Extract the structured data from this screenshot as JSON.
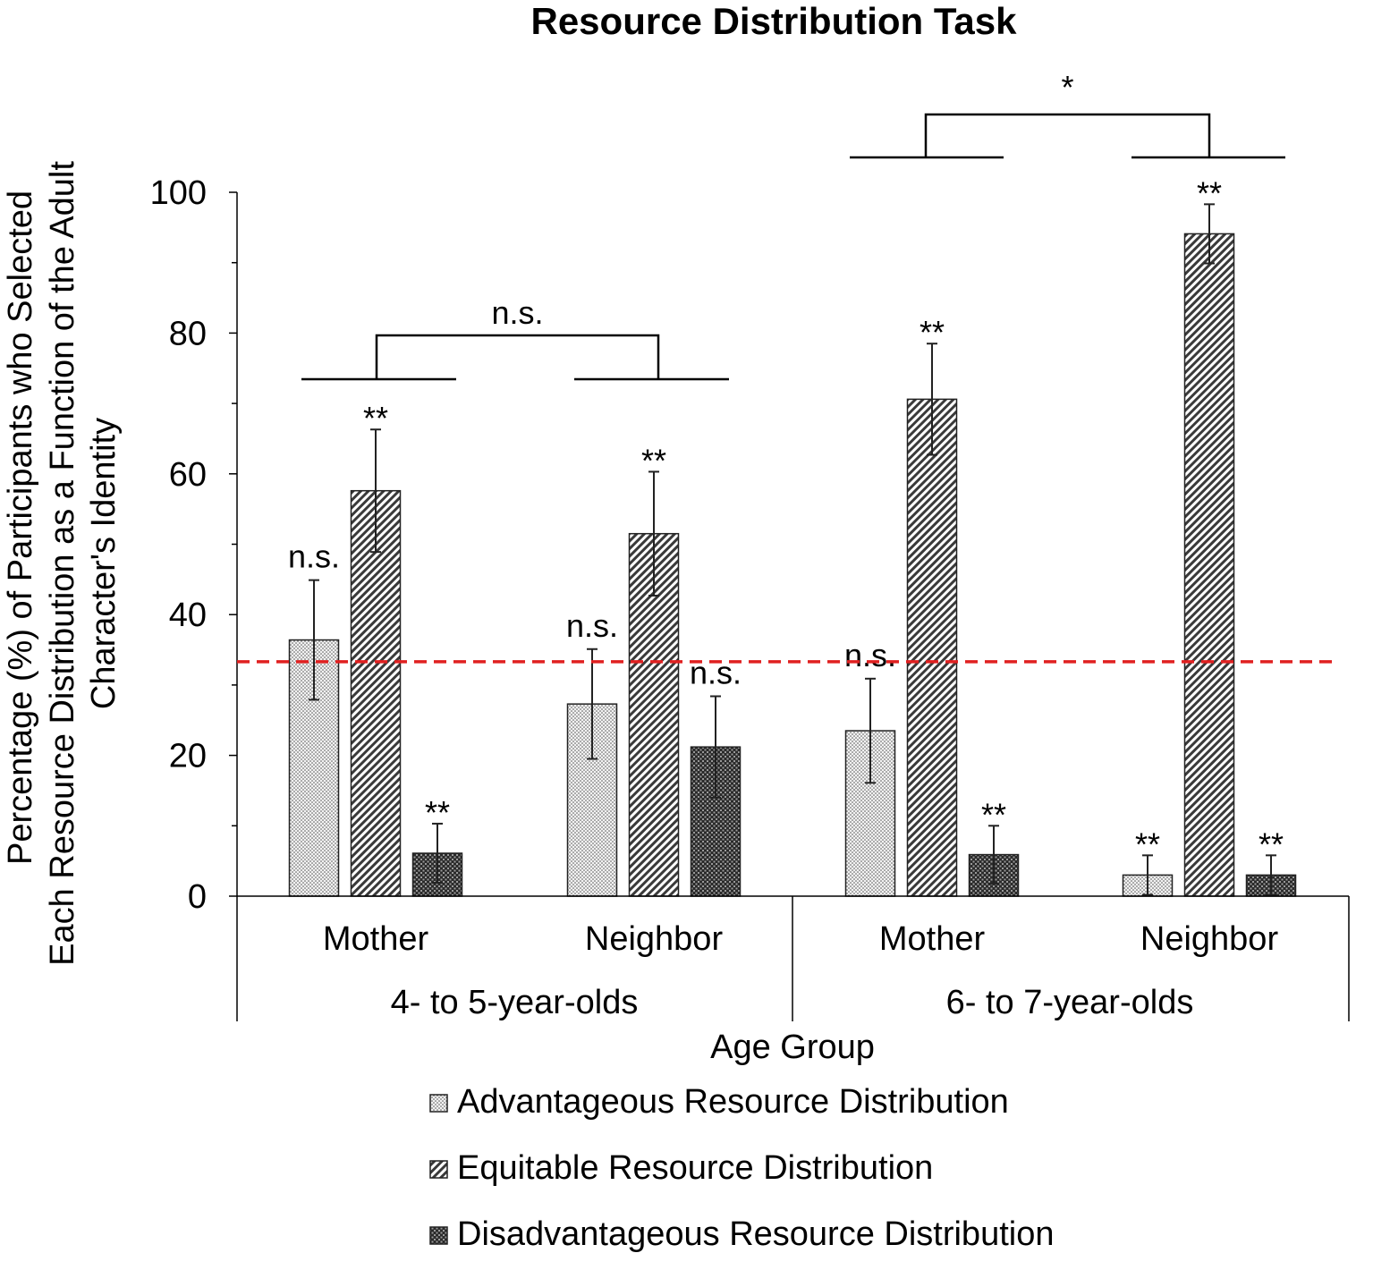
{
  "chart_data": {
    "type": "bar",
    "title": "Resource Distribution Task",
    "ylabel_lines": [
      "Percentage (%) of Participants who Selected",
      "Each Resource Distribution as a Function of the Adult",
      "Character's Identity"
    ],
    "xlabel": "Age Group",
    "ylim": [
      0,
      100
    ],
    "yticks": [
      "0",
      "20",
      "40",
      "60",
      "80",
      "100"
    ],
    "ytick_values": [
      0,
      20,
      40,
      60,
      80,
      100
    ],
    "chance_line": 33.3,
    "chance_color": "#e02020",
    "groups": [
      {
        "label": "4- to 5-year-olds",
        "categories": [
          "Mother",
          "Neighbor"
        ]
      },
      {
        "label": "6- to 7-year-olds",
        "categories": [
          "Mother",
          "Neighbor"
        ]
      }
    ],
    "categories": [
      "Mother",
      "Neighbor",
      "Mother",
      "Neighbor"
    ],
    "series": [
      {
        "name": "Advantageous Resource Distribution",
        "pattern": "dots",
        "values": [
          36.4,
          27.3,
          23.5,
          3.0
        ],
        "errors": [
          8.5,
          7.8,
          7.4,
          2.8
        ],
        "annotations": [
          "n.s.",
          "n.s.",
          "n.s.",
          "**"
        ]
      },
      {
        "name": "Equitable Resource Distribution",
        "pattern": "diagonal",
        "values": [
          57.6,
          51.5,
          70.6,
          94.1
        ],
        "errors": [
          8.7,
          8.8,
          7.9,
          4.2
        ],
        "annotations": [
          "**",
          "**",
          "**",
          "**"
        ]
      },
      {
        "name": "Disadvantageous Resource Distribution",
        "pattern": "crosshatch",
        "values": [
          6.1,
          21.2,
          5.9,
          3.0
        ],
        "errors": [
          4.2,
          7.2,
          4.1,
          2.8
        ],
        "annotations": [
          "**",
          "n.s.",
          "**",
          "**"
        ]
      }
    ],
    "comparisons": [
      {
        "group": "4- to 5-year-olds",
        "label": "n.s."
      },
      {
        "group": "6- to 7-year-olds",
        "label": "*"
      }
    ],
    "legend_position": "bottom"
  }
}
